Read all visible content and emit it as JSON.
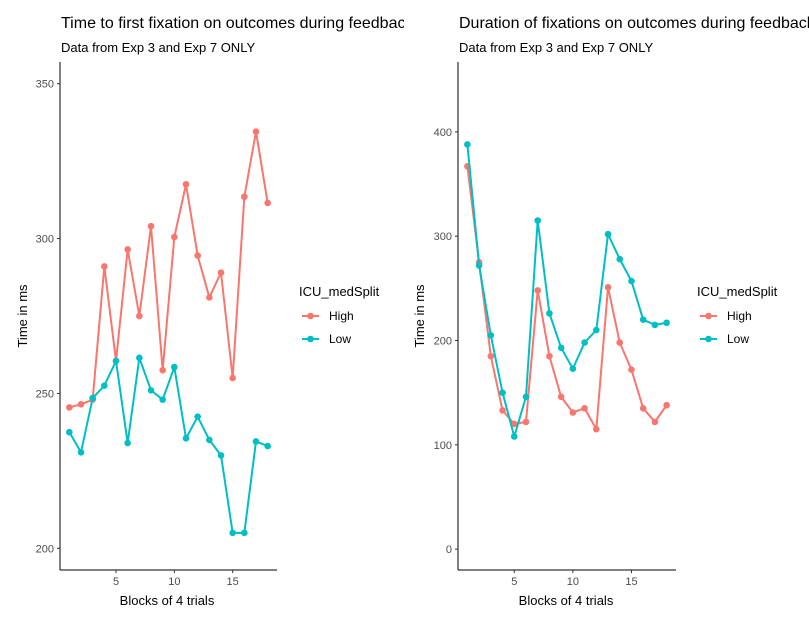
{
  "colors": {
    "High": "#F8766D",
    "Low": "#00BFC4"
  },
  "chart_data": [
    {
      "type": "line",
      "title": "Time to first fixation on outcomes during feedback",
      "subtitle": "Data from Exp 3 and Exp 7 ONLY",
      "xlabel": "Blocks of 4 trials",
      "ylabel": "Time in ms",
      "xlim": [
        0.2,
        18.8
      ],
      "ylim": [
        193,
        357
      ],
      "xticks": [
        5,
        10,
        15
      ],
      "yticks": [
        200,
        250,
        300,
        350
      ],
      "grid": false,
      "legend": {
        "title": "ICU_medSplit",
        "entries": [
          "High",
          "Low"
        ],
        "placement": "right"
      },
      "x": [
        1,
        2,
        3,
        4,
        5,
        6,
        7,
        8,
        9,
        10,
        11,
        12,
        13,
        14,
        15,
        16,
        17,
        18
      ],
      "series": [
        {
          "name": "High",
          "values": [
            245.5,
            246.5,
            248.0,
            291.0,
            260.5,
            296.5,
            275.0,
            304.0,
            257.5,
            300.5,
            317.5,
            294.5,
            281.0,
            289.0,
            255.0,
            313.5,
            334.5,
            311.5
          ]
        },
        {
          "name": "Low",
          "values": [
            237.5,
            231.0,
            248.5,
            252.5,
            260.5,
            234.0,
            261.5,
            251.0,
            248.0,
            258.5,
            235.5,
            242.5,
            235.0,
            230.0,
            205.0,
            205.0,
            234.5,
            233.0
          ]
        }
      ]
    },
    {
      "type": "line",
      "title": "Duration of fixations on outcomes during feedback",
      "subtitle": "Data from Exp 3 and Exp 7 ONLY",
      "xlabel": "Blocks of 4 trials",
      "ylabel": "Time in ms",
      "xlim": [
        0.2,
        18.8
      ],
      "ylim": [
        -20,
        467
      ],
      "xticks": [
        5,
        10,
        15
      ],
      "yticks": [
        0,
        100,
        200,
        300,
        400
      ],
      "grid": false,
      "legend": {
        "title": "ICU_medSplit",
        "entries": [
          "High",
          "Low"
        ],
        "placement": "right"
      },
      "x": [
        1,
        2,
        3,
        4,
        5,
        6,
        7,
        8,
        9,
        10,
        11,
        12,
        13,
        14,
        15,
        16,
        17,
        18
      ],
      "series": [
        {
          "name": "High",
          "values": [
            367,
            275,
            185,
            133,
            120,
            122,
            248,
            185,
            146,
            131,
            135,
            115,
            251,
            198,
            172,
            135,
            122,
            138
          ]
        },
        {
          "name": "Low",
          "values": [
            388,
            272,
            205,
            150,
            108,
            146,
            315,
            226,
            193,
            173,
            198,
            210,
            302,
            278,
            257,
            220,
            215,
            217
          ]
        }
      ]
    }
  ]
}
